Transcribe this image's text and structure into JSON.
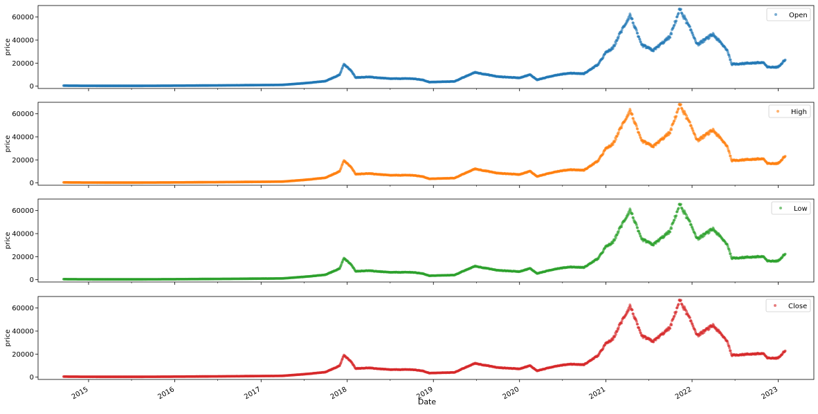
{
  "chart_data": {
    "type": "scatter",
    "xlabel": "Date",
    "ylabel": "price",
    "xlim": [
      "2014-06-01",
      "2023-06-01"
    ],
    "ylim": [
      -2000,
      70000
    ],
    "yticks": [
      0,
      20000,
      40000,
      60000
    ],
    "ytick_labels": [
      "0",
      "20000",
      "40000",
      "60000"
    ],
    "xticks": [
      "2015-01-01",
      "2016-01-01",
      "2017-01-01",
      "2018-01-01",
      "2019-01-01",
      "2020-01-01",
      "2021-01-01",
      "2022-01-01",
      "2023-01-01"
    ],
    "xtick_labels": [
      "2015",
      "2016",
      "2017",
      "2018",
      "2019",
      "2020",
      "2021",
      "2022",
      "2023"
    ],
    "grid": false,
    "legend_position": "top-right",
    "shared_x": true,
    "date_range": [
      "2014-09-17",
      "2023-02-01"
    ],
    "price_profile": {
      "dates": [
        "2014-09-17",
        "2014-12-31",
        "2015-06-30",
        "2015-12-31",
        "2016-06-30",
        "2016-12-31",
        "2017-03-31",
        "2017-06-30",
        "2017-09-30",
        "2017-11-30",
        "2017-12-17",
        "2018-01-15",
        "2018-02-06",
        "2018-03-31",
        "2018-06-30",
        "2018-09-30",
        "2018-11-15",
        "2018-12-15",
        "2019-03-31",
        "2019-06-26",
        "2019-09-30",
        "2019-12-31",
        "2020-02-15",
        "2020-03-15",
        "2020-05-31",
        "2020-07-31",
        "2020-09-30",
        "2020-11-30",
        "2020-12-31",
        "2021-01-31",
        "2021-02-28",
        "2021-04-14",
        "2021-05-31",
        "2021-07-20",
        "2021-09-30",
        "2021-11-10",
        "2021-12-31",
        "2022-01-24",
        "2022-03-31",
        "2022-05-31",
        "2022-06-18",
        "2022-08-31",
        "2022-10-31",
        "2022-11-15",
        "2022-12-31",
        "2023-02-01"
      ],
      "values": [
        450,
        320,
        260,
        430,
        650,
        960,
        1100,
        2500,
        4300,
        9900,
        19000,
        14000,
        7500,
        8000,
        6500,
        6600,
        5500,
        3500,
        4100,
        12000,
        8300,
        7200,
        10000,
        5500,
        9500,
        11300,
        10800,
        19000,
        29000,
        33000,
        45000,
        62000,
        36000,
        31000,
        43000,
        67000,
        47000,
        36000,
        45000,
        31000,
        19000,
        20000,
        20500,
        16500,
        16500,
        23500
      ]
    },
    "series": [
      {
        "name": "Open",
        "color": "#1f77b4"
      },
      {
        "name": "High",
        "color": "#ff7f0e"
      },
      {
        "name": "Low",
        "color": "#2ca02c"
      },
      {
        "name": "Close",
        "color": "#d62728"
      }
    ]
  }
}
